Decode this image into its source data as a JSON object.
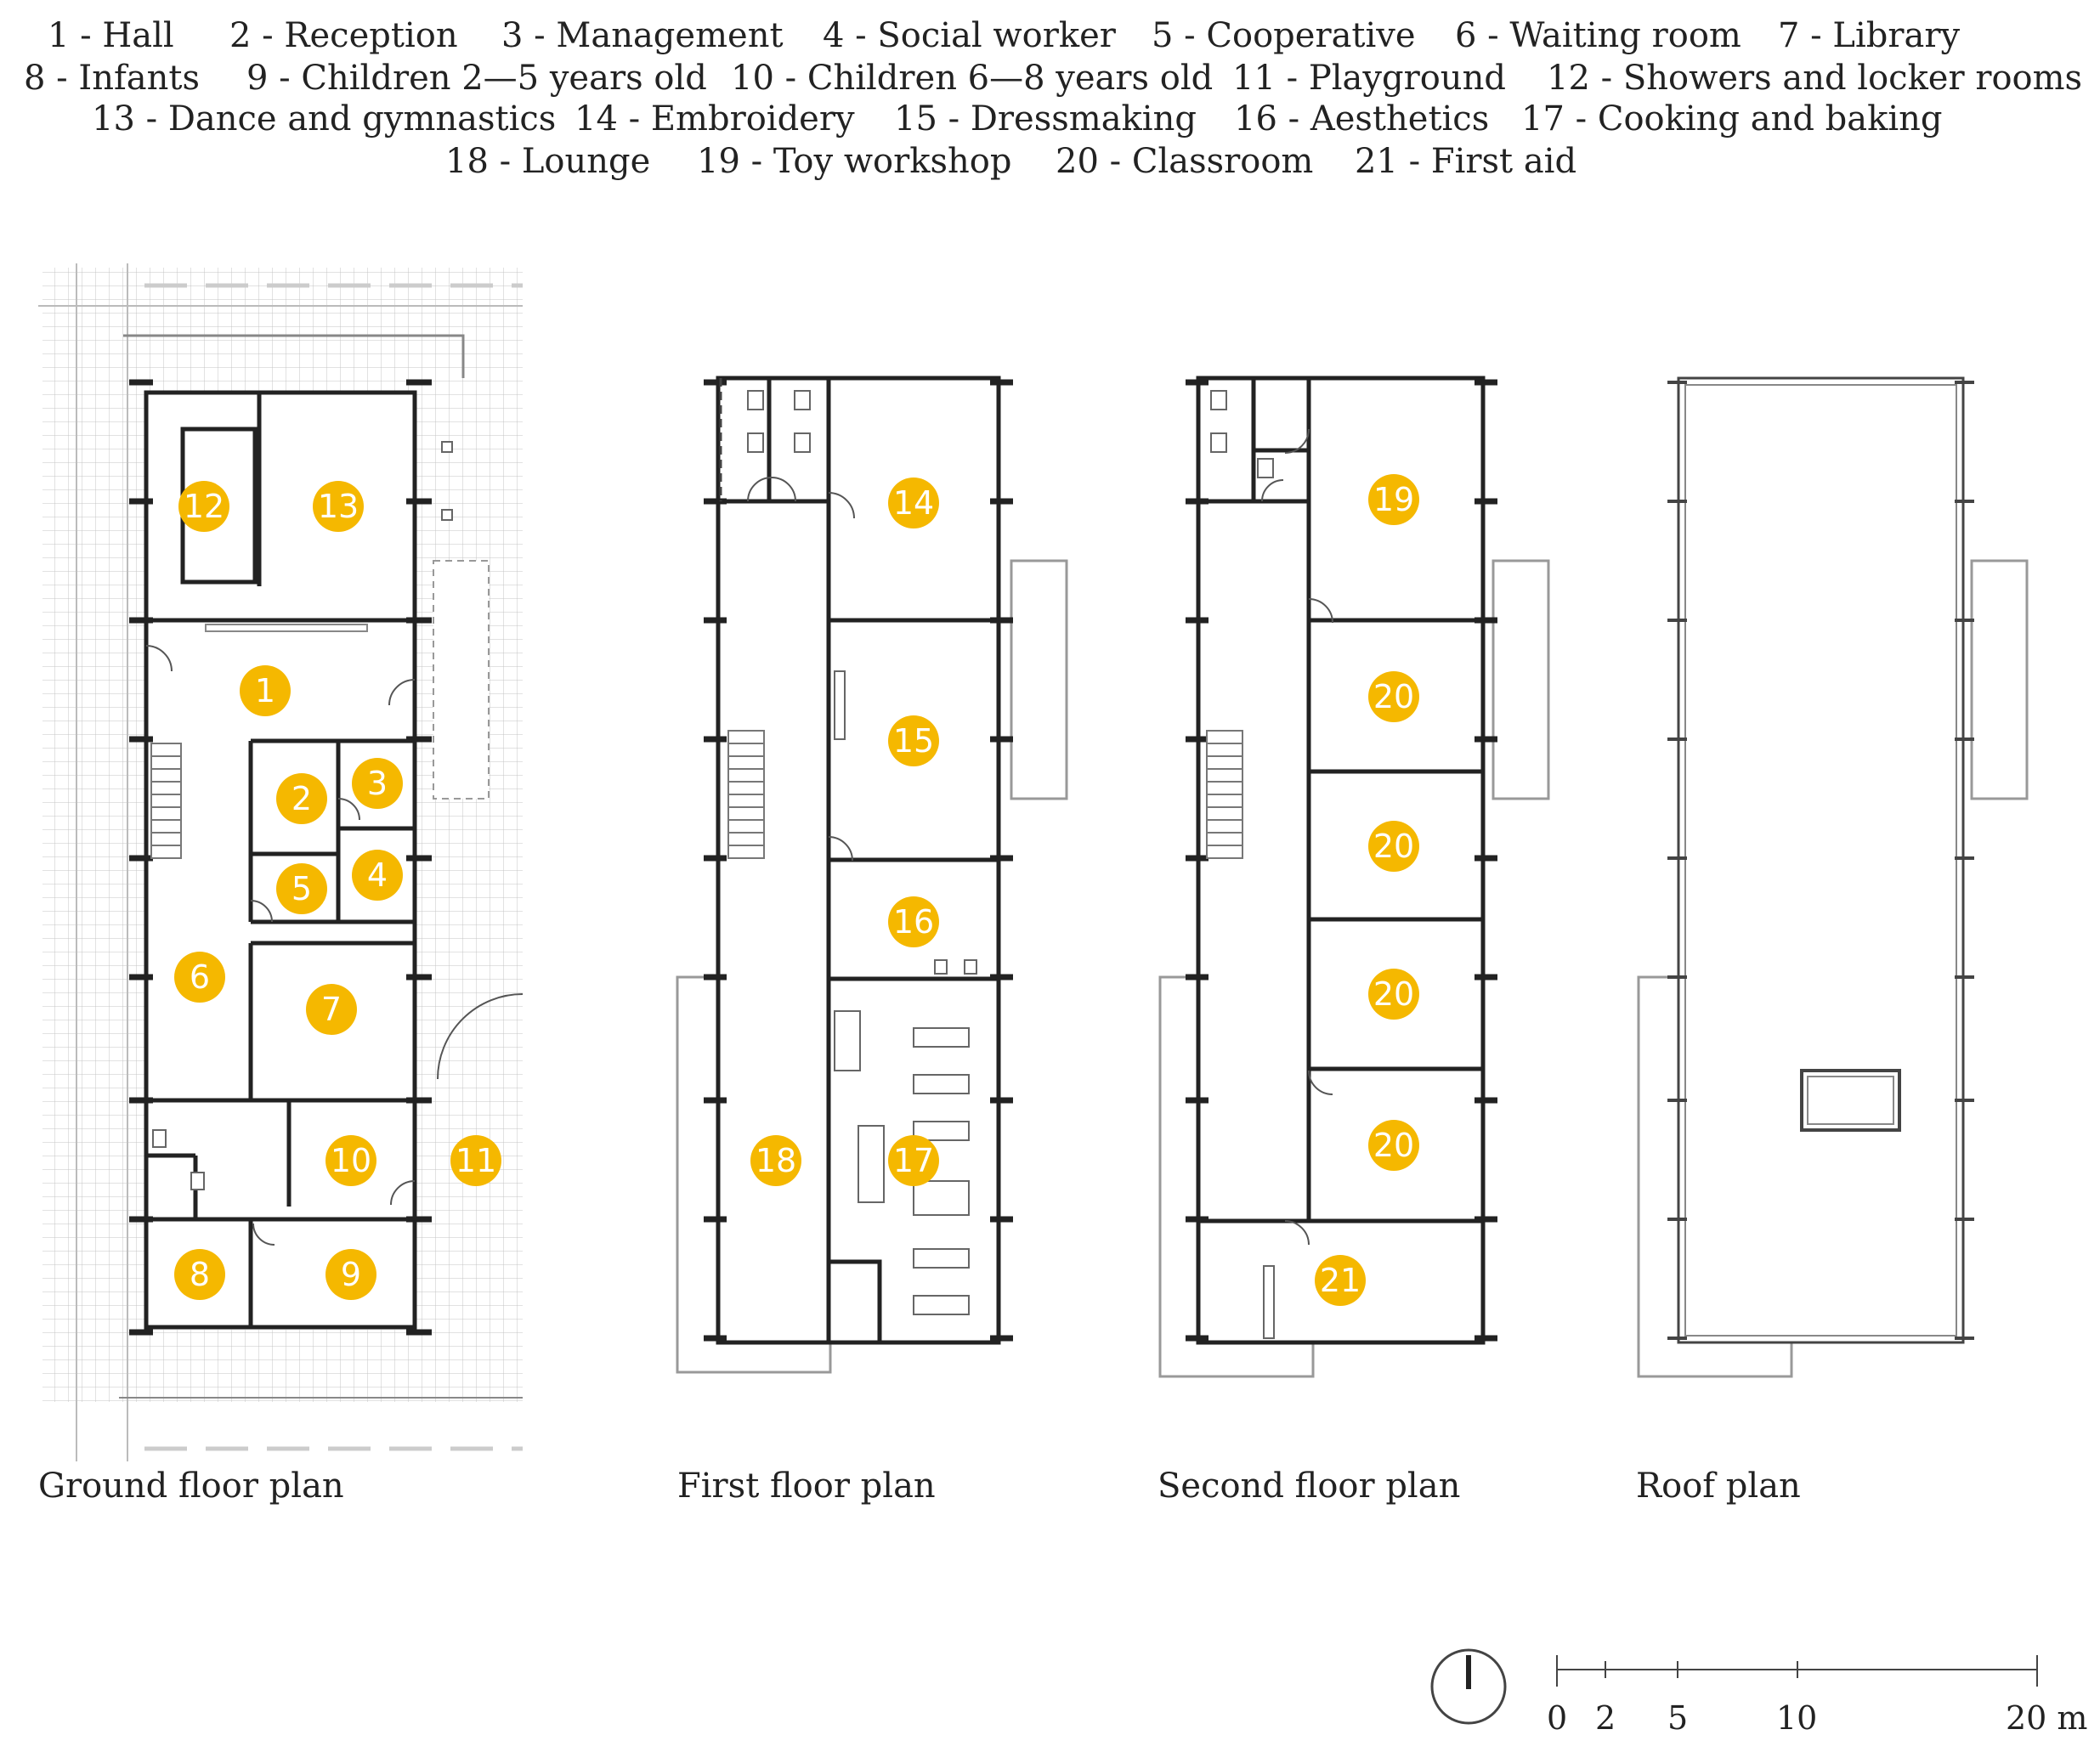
{
  "legend": [
    {
      "n": "1",
      "text": "1 - Hall"
    },
    {
      "n": "2",
      "text": "2 - Reception"
    },
    {
      "n": "3",
      "text": "3 - Management"
    },
    {
      "n": "4",
      "text": "4 - Social worker"
    },
    {
      "n": "5",
      "text": "5 - Cooperative"
    },
    {
      "n": "6",
      "text": "6 - Waiting room"
    },
    {
      "n": "7",
      "text": "7 - Library"
    },
    {
      "n": "8",
      "text": "8 - Infants"
    },
    {
      "n": "9",
      "text": "9 - Children 2—5 years old"
    },
    {
      "n": "10",
      "text": "10 - Children 6—8 years old"
    },
    {
      "n": "11",
      "text": "11 - Playground"
    },
    {
      "n": "12",
      "text": "12 - Showers and locker rooms"
    },
    {
      "n": "13",
      "text": "13 - Dance and gymnastics"
    },
    {
      "n": "14",
      "text": "14 - Embroidery"
    },
    {
      "n": "15",
      "text": "15 - Dressmaking"
    },
    {
      "n": "16",
      "text": "16 - Aesthetics"
    },
    {
      "n": "17",
      "text": "17 - Cooking and baking"
    },
    {
      "n": "18",
      "text": "18 - Lounge"
    },
    {
      "n": "19",
      "text": "19 - Toy workshop"
    },
    {
      "n": "20",
      "text": "20 - Classroom"
    },
    {
      "n": "21",
      "text": "21 - First aid"
    }
  ],
  "plans": {
    "ground": {
      "title": "Ground floor plan",
      "rooms": [
        "1",
        "2",
        "3",
        "4",
        "5",
        "6",
        "7",
        "8",
        "9",
        "10",
        "11",
        "12",
        "13"
      ]
    },
    "first": {
      "title": "First floor plan",
      "rooms": [
        "14",
        "15",
        "16",
        "17",
        "18"
      ]
    },
    "second": {
      "title": "Second floor plan",
      "rooms": [
        "19",
        "20",
        "20",
        "20",
        "20",
        "21"
      ]
    },
    "roof": {
      "title": "Roof plan"
    }
  },
  "scale": {
    "labels": [
      "0",
      "2",
      "5",
      "10",
      "20 m"
    ]
  },
  "colors": {
    "badge": "#f5b800",
    "wall": "#222222",
    "grid": "#b8b8b8"
  }
}
